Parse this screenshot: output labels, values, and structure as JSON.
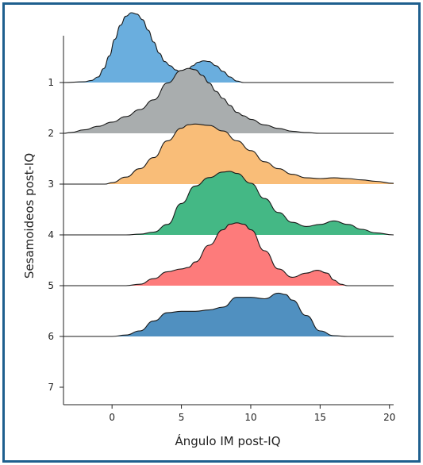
{
  "chart_data": {
    "type": "ridgeline",
    "xlabel": "Ángulo IM post-IQ",
    "ylabel": "Sesamoideos post-IQ",
    "xlim": [
      -3.5,
      20.3
    ],
    "xticks": [
      0,
      5,
      10,
      15,
      20
    ],
    "categories": [
      "1",
      "2",
      "3",
      "4",
      "5",
      "6",
      "7"
    ],
    "series": [
      {
        "category": "1",
        "color": "#6aaede",
        "points": [
          [
            -3.5,
            0
          ],
          [
            -2.0,
            0.01
          ],
          [
            -1.5,
            0.03
          ],
          [
            -1.0,
            0.08
          ],
          [
            -0.6,
            0.2
          ],
          [
            -0.2,
            0.38
          ],
          [
            0.2,
            0.62
          ],
          [
            0.6,
            0.82
          ],
          [
            1.0,
            0.95
          ],
          [
            1.4,
            1.0
          ],
          [
            1.8,
            0.98
          ],
          [
            2.2,
            0.9
          ],
          [
            2.6,
            0.75
          ],
          [
            3.0,
            0.58
          ],
          [
            3.4,
            0.42
          ],
          [
            3.8,
            0.3
          ],
          [
            4.2,
            0.24
          ],
          [
            4.6,
            0.18
          ],
          [
            5.0,
            0.14
          ],
          [
            5.4,
            0.17
          ],
          [
            5.8,
            0.24
          ],
          [
            6.2,
            0.29
          ],
          [
            6.6,
            0.31
          ],
          [
            7.0,
            0.3
          ],
          [
            7.5,
            0.24
          ],
          [
            8.0,
            0.16
          ],
          [
            8.5,
            0.08
          ],
          [
            9.0,
            0.02
          ],
          [
            9.5,
            0
          ],
          [
            20.3,
            0
          ]
        ]
      },
      {
        "category": "2",
        "color": "#a9adae",
        "points": [
          [
            -3.5,
            0
          ],
          [
            -3.0,
            0.01
          ],
          [
            -2.0,
            0.05
          ],
          [
            -1.0,
            0.1
          ],
          [
            0.0,
            0.16
          ],
          [
            1.0,
            0.24
          ],
          [
            2.0,
            0.34
          ],
          [
            3.0,
            0.48
          ],
          [
            4.0,
            0.72
          ],
          [
            5.0,
            0.9
          ],
          [
            5.5,
            0.93
          ],
          [
            6.0,
            0.91
          ],
          [
            6.5,
            0.83
          ],
          [
            7.0,
            0.72
          ],
          [
            7.5,
            0.6
          ],
          [
            8.0,
            0.5
          ],
          [
            8.5,
            0.4
          ],
          [
            9.0,
            0.3
          ],
          [
            9.5,
            0.25
          ],
          [
            10.0,
            0.2
          ],
          [
            11.0,
            0.12
          ],
          [
            12.0,
            0.07
          ],
          [
            13.0,
            0.03
          ],
          [
            14.0,
            0.01
          ],
          [
            15.0,
            0
          ],
          [
            20.3,
            0
          ]
        ]
      },
      {
        "category": "3",
        "color": "#f9bd78",
        "points": [
          [
            -3.5,
            0
          ],
          [
            -0.5,
            0
          ],
          [
            0.0,
            0.02
          ],
          [
            1.0,
            0.1
          ],
          [
            2.0,
            0.22
          ],
          [
            3.0,
            0.38
          ],
          [
            4.0,
            0.62
          ],
          [
            5.0,
            0.8
          ],
          [
            5.5,
            0.85
          ],
          [
            6.0,
            0.86
          ],
          [
            7.0,
            0.84
          ],
          [
            8.0,
            0.76
          ],
          [
            9.0,
            0.62
          ],
          [
            10.0,
            0.48
          ],
          [
            11.0,
            0.32
          ],
          [
            12.0,
            0.22
          ],
          [
            13.0,
            0.14
          ],
          [
            14.0,
            0.09
          ],
          [
            15.0,
            0.08
          ],
          [
            16.0,
            0.09
          ],
          [
            17.0,
            0.08
          ],
          [
            18.0,
            0.06
          ],
          [
            19.0,
            0.04
          ],
          [
            20.3,
            0.01
          ]
        ]
      },
      {
        "category": "4",
        "color": "#44b885",
        "points": [
          [
            -3.5,
            0
          ],
          [
            1.0,
            0
          ],
          [
            2.0,
            0.01
          ],
          [
            3.0,
            0.04
          ],
          [
            4.0,
            0.15
          ],
          [
            5.0,
            0.45
          ],
          [
            6.0,
            0.7
          ],
          [
            7.0,
            0.82
          ],
          [
            8.0,
            0.9
          ],
          [
            8.5,
            0.91
          ],
          [
            9.0,
            0.88
          ],
          [
            10.0,
            0.74
          ],
          [
            11.0,
            0.52
          ],
          [
            12.0,
            0.32
          ],
          [
            13.0,
            0.18
          ],
          [
            14.0,
            0.12
          ],
          [
            15.0,
            0.15
          ],
          [
            16.0,
            0.2
          ],
          [
            17.0,
            0.15
          ],
          [
            18.0,
            0.08
          ],
          [
            19.0,
            0.03
          ],
          [
            20.3,
            0
          ]
        ]
      },
      {
        "category": "5",
        "color": "#fd7b7b",
        "points": [
          [
            -3.5,
            0
          ],
          [
            1.0,
            0
          ],
          [
            2.0,
            0.02
          ],
          [
            3.0,
            0.1
          ],
          [
            4.0,
            0.2
          ],
          [
            5.0,
            0.24
          ],
          [
            5.5,
            0.26
          ],
          [
            6.0,
            0.34
          ],
          [
            7.0,
            0.58
          ],
          [
            8.0,
            0.8
          ],
          [
            8.5,
            0.88
          ],
          [
            9.0,
            0.9
          ],
          [
            9.5,
            0.88
          ],
          [
            10.0,
            0.8
          ],
          [
            11.0,
            0.5
          ],
          [
            12.0,
            0.24
          ],
          [
            13.0,
            0.12
          ],
          [
            14.0,
            0.18
          ],
          [
            14.8,
            0.22
          ],
          [
            15.5,
            0.18
          ],
          [
            16.0,
            0.08
          ],
          [
            16.5,
            0.02
          ],
          [
            17.0,
            0
          ],
          [
            20.3,
            0
          ]
        ]
      },
      {
        "category": "6",
        "color": "#5090c0",
        "points": [
          [
            -3.5,
            0
          ],
          [
            0.0,
            0
          ],
          [
            1.0,
            0.02
          ],
          [
            2.0,
            0.08
          ],
          [
            3.0,
            0.22
          ],
          [
            4.0,
            0.34
          ],
          [
            5.0,
            0.36
          ],
          [
            6.0,
            0.36
          ],
          [
            7.0,
            0.38
          ],
          [
            8.0,
            0.42
          ],
          [
            9.0,
            0.56
          ],
          [
            10.0,
            0.56
          ],
          [
            11.0,
            0.54
          ],
          [
            12.0,
            0.62
          ],
          [
            12.5,
            0.6
          ],
          [
            13.0,
            0.52
          ],
          [
            14.0,
            0.3
          ],
          [
            15.0,
            0.08
          ],
          [
            16.0,
            0.01
          ],
          [
            17.0,
            0
          ],
          [
            20.3,
            0
          ]
        ]
      },
      {
        "category": "7",
        "color": "#cccccc",
        "points": []
      }
    ]
  }
}
